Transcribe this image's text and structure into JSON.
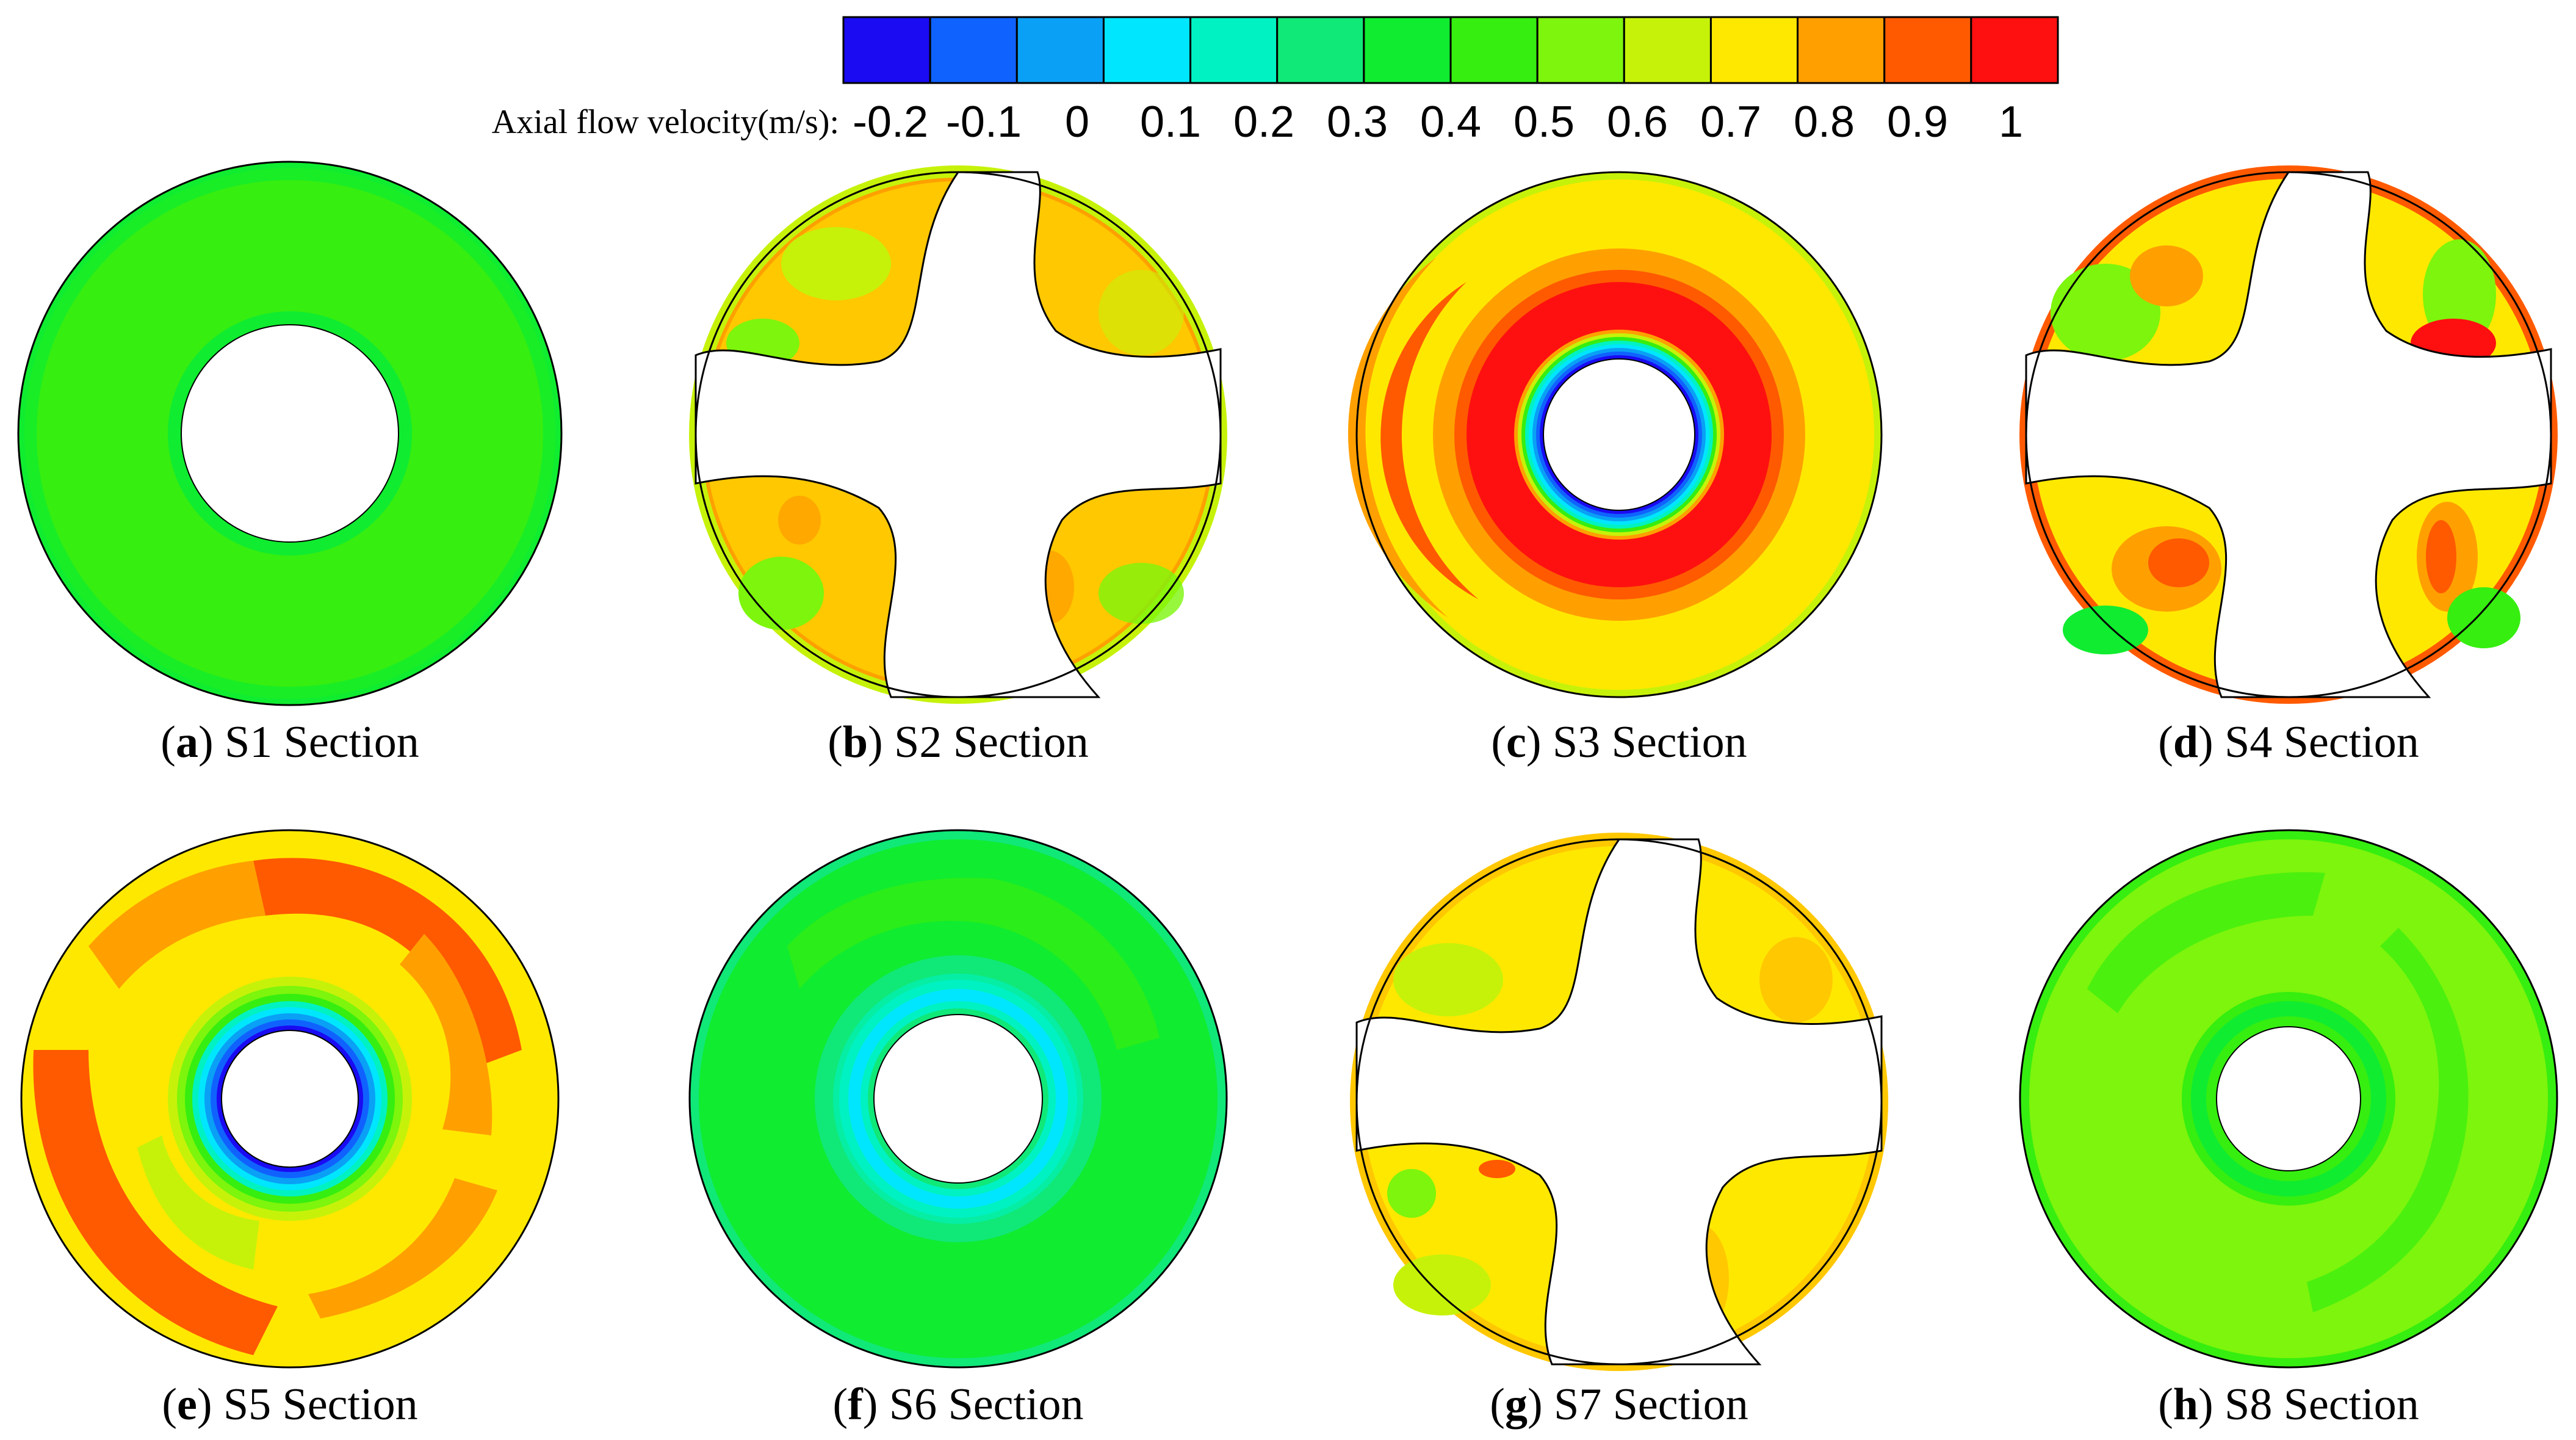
{
  "legend": {
    "title": "Axial flow velocity(m/s):",
    "ticks": [
      "-0.2",
      "-0.1",
      "0",
      "0.1",
      "0.2",
      "0.3",
      "0.4",
      "0.5",
      "0.6",
      "0.7",
      "0.8",
      "0.9",
      "1"
    ],
    "colors": [
      "#1a0bf2",
      "#1062ff",
      "#0aa0f5",
      "#00e6ff",
      "#00f2c2",
      "#10e878",
      "#10ec30",
      "#36ee10",
      "#7df50c",
      "#c6f20a",
      "#ffe800",
      "#ffa000",
      "#ff5a00",
      "#ff1010"
    ]
  },
  "panels": [
    {
      "letter": "a",
      "label": "S1 Section",
      "type": "annulus"
    },
    {
      "letter": "b",
      "label": "S2 Section",
      "type": "blades"
    },
    {
      "letter": "c",
      "label": "S3 Section",
      "type": "annulus"
    },
    {
      "letter": "d",
      "label": "S4 Section",
      "type": "blades"
    },
    {
      "letter": "e",
      "label": "S5 Section",
      "type": "annulus"
    },
    {
      "letter": "f",
      "label": "S6 Section",
      "type": "annulus"
    },
    {
      "letter": "g",
      "label": "S7 Section",
      "type": "blades"
    },
    {
      "letter": "h",
      "label": "S8 Section",
      "type": "annulus"
    }
  ]
}
